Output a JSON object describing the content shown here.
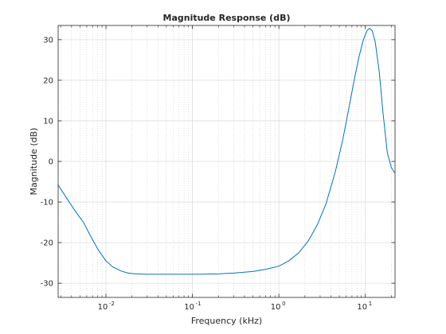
{
  "chart_data": {
    "type": "line",
    "title": "Magnitude Response (dB)",
    "xlabel": "Frequency (kHz)",
    "ylabel": "Magnitude (dB)",
    "xscale": "log",
    "xlim": [
      0.0028,
      22.05
    ],
    "ylim": [
      -33.5,
      33.5
    ],
    "grid": true,
    "minor_grid": true,
    "x_ticks": [
      {
        "value": 0.01,
        "base": "10",
        "exp": "-2"
      },
      {
        "value": 0.1,
        "base": "10",
        "exp": "-1"
      },
      {
        "value": 1,
        "base": "10",
        "exp": "0"
      },
      {
        "value": 10,
        "base": "10",
        "exp": "1"
      }
    ],
    "y_ticks": [
      {
        "value": 30,
        "label": "30"
      },
      {
        "value": 20,
        "label": "20"
      },
      {
        "value": 10,
        "label": "10"
      },
      {
        "value": 0,
        "label": "0"
      },
      {
        "value": -10,
        "label": "-10"
      },
      {
        "value": -20,
        "label": "-20"
      },
      {
        "value": -30,
        "label": "-30"
      }
    ],
    "series": [
      {
        "color": "#0072bd",
        "x": [
          0.0028,
          0.0035,
          0.0045,
          0.0055,
          0.0065,
          0.008,
          0.01,
          0.012,
          0.015,
          0.018,
          0.022,
          0.03,
          0.05,
          0.1,
          0.2,
          0.3,
          0.5,
          0.7,
          1.0,
          1.3,
          1.7,
          2.2,
          2.8,
          3.5,
          4.5,
          5.5,
          6.5,
          7.5,
          8.5,
          9.5,
          10.5,
          11.2,
          12.0,
          13.0,
          14.5,
          16.0,
          18.0,
          20.0,
          21.5,
          22.05
        ],
        "y": [
          -5.8,
          -9,
          -12.5,
          -15,
          -18,
          -21.5,
          -24.5,
          -26,
          -27,
          -27.5,
          -27.7,
          -27.8,
          -27.8,
          -27.8,
          -27.7,
          -27.5,
          -27.1,
          -26.6,
          -25.8,
          -24.5,
          -22.5,
          -19.5,
          -15.5,
          -10.5,
          -2.5,
          5.5,
          13.5,
          20.5,
          26,
          30,
          32.3,
          32.8,
          32.2,
          29.5,
          22,
          12,
          2,
          -1.5,
          -2.6,
          -2.8
        ]
      }
    ]
  }
}
